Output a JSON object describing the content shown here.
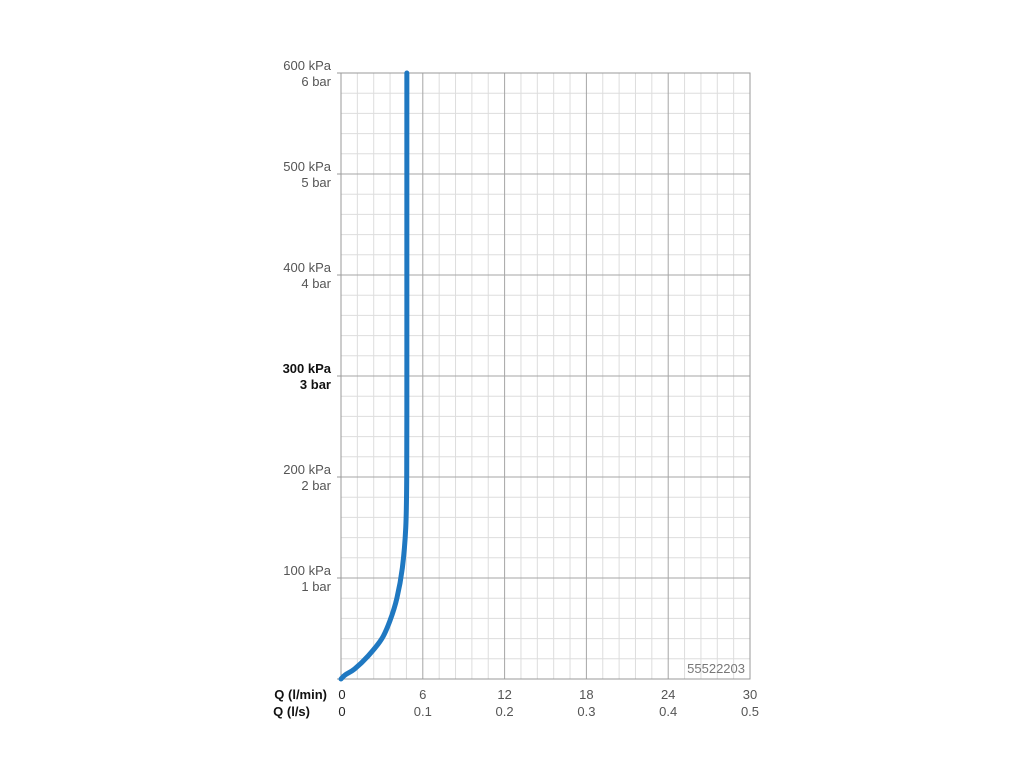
{
  "chart_data": {
    "type": "line",
    "series": [
      {
        "color": "#1f78c1",
        "points": [
          [
            0,
            0
          ],
          [
            0.3,
            4
          ],
          [
            1.0,
            10
          ],
          [
            2.0,
            23
          ],
          [
            3.0,
            40
          ],
          [
            3.6,
            58
          ],
          [
            4.1,
            80
          ],
          [
            4.5,
            110
          ],
          [
            4.75,
            150
          ],
          [
            4.82,
            200
          ],
          [
            4.83,
            300
          ],
          [
            4.83,
            400
          ],
          [
            4.83,
            500
          ],
          [
            4.83,
            600
          ]
        ]
      }
    ],
    "x_unit": "l/min",
    "xlim": [
      0,
      30
    ],
    "ylim": [
      0,
      600
    ],
    "x_ticks_primary": [
      0,
      6,
      12,
      18,
      24,
      30
    ],
    "x_tick_labels_primary": [
      "0",
      "6",
      "12",
      "18",
      "24",
      "30"
    ],
    "x_tick_labels_secondary": [
      "0",
      "0.1",
      "0.2",
      "0.3",
      "0.4",
      "0.5"
    ],
    "x_axis_label_primary": "Q (l/min)",
    "x_axis_label_secondary": "Q (l/s)",
    "y_ticks": [
      {
        "value": 600,
        "line1": "600 kPa",
        "line2": "6 bar",
        "highlight": false
      },
      {
        "value": 500,
        "line1": "500 kPa",
        "line2": "5 bar",
        "highlight": false
      },
      {
        "value": 400,
        "line1": "400 kPa",
        "line2": "4 bar",
        "highlight": false
      },
      {
        "value": 300,
        "line1": "300 kPa",
        "line2": "3 bar",
        "highlight": true
      },
      {
        "value": 200,
        "line1": "200 kPa",
        "line2": "2 bar",
        "highlight": false
      },
      {
        "value": 100,
        "line1": "100 kPa",
        "line2": "1 bar",
        "highlight": false
      }
    ],
    "grid": true,
    "minor_grid_divisions_x": 5,
    "minor_grid_divisions_y": 5,
    "product_code": "55522203"
  }
}
